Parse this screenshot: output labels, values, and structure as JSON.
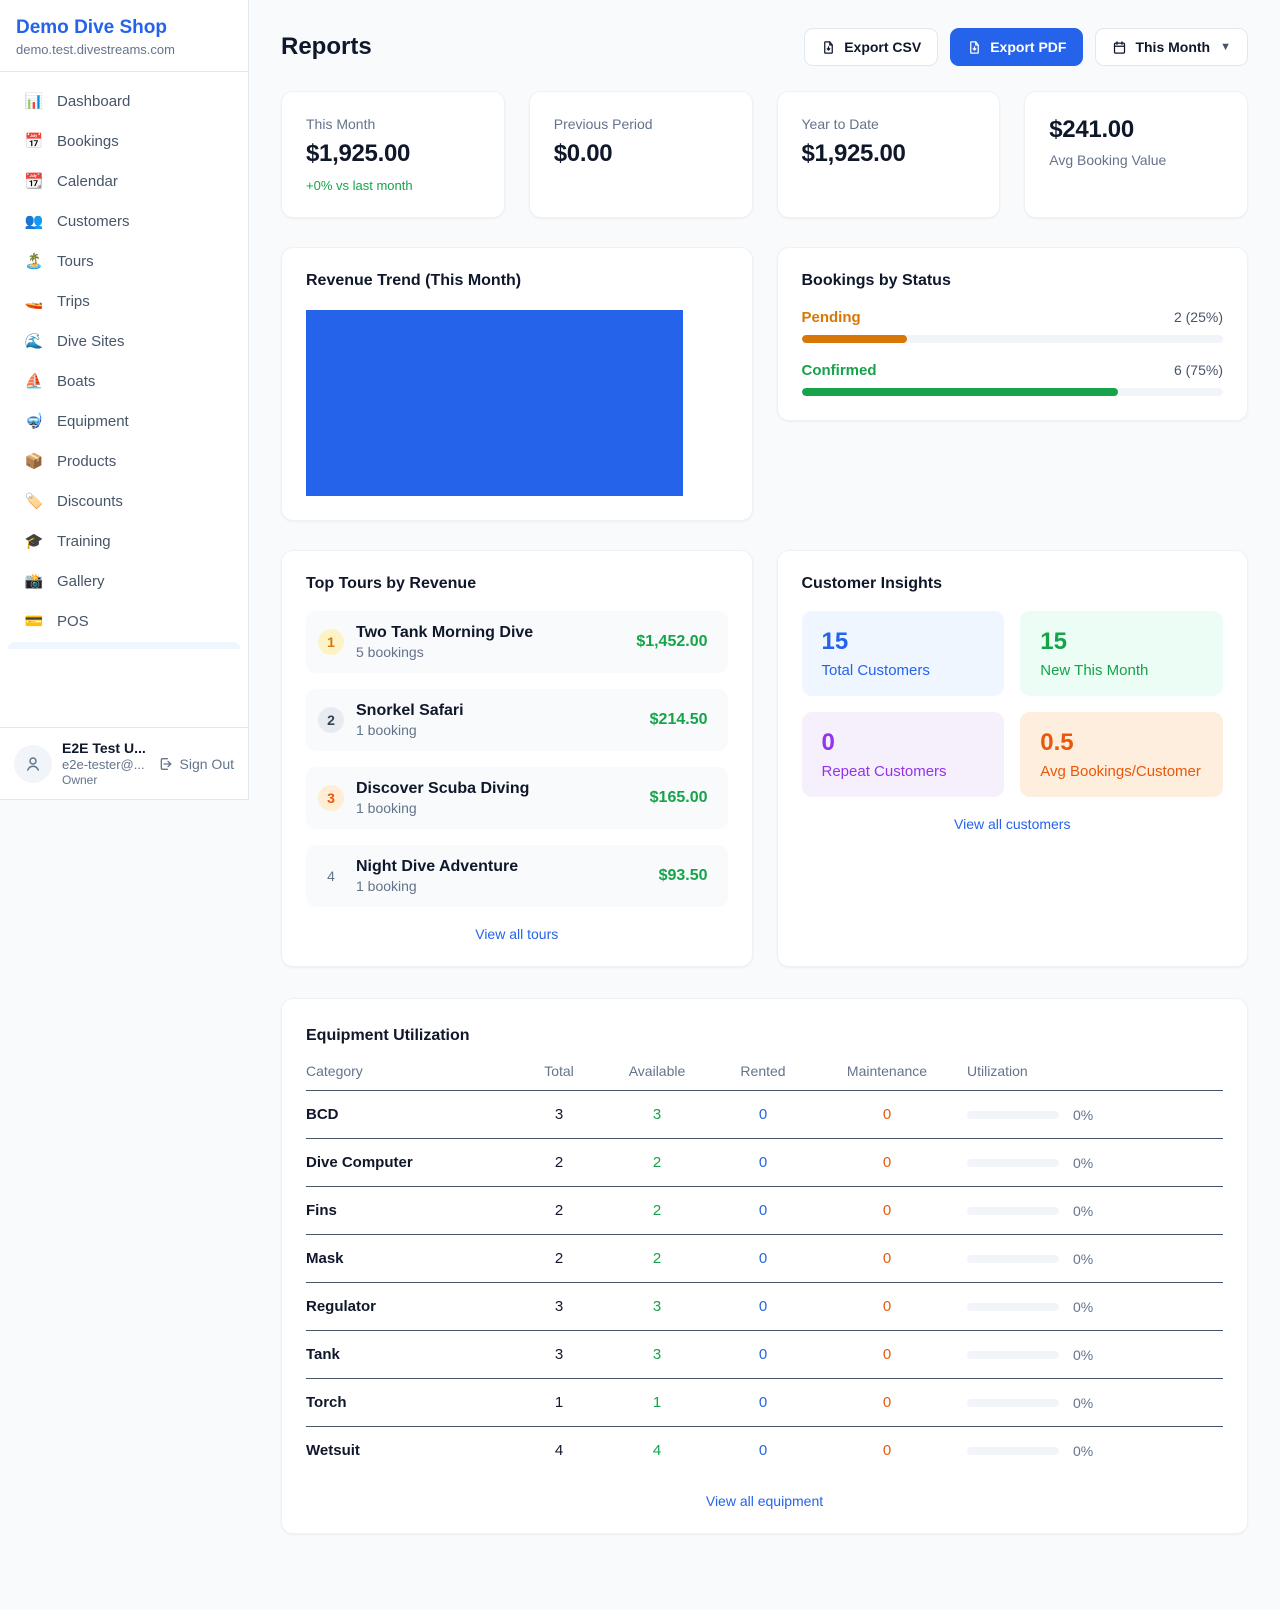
{
  "colors": {
    "accent_blue": "#2563eb",
    "green": "#16a34a",
    "amber": "#d97706",
    "orange": "#ea580c",
    "purple": "#9333ea"
  },
  "sidebar": {
    "brand_name": "Demo Dive Shop",
    "brand_domain": "demo.test.divestreams.com",
    "nav": [
      {
        "icon": "📊",
        "label": "Dashboard"
      },
      {
        "icon": "📅",
        "label": "Bookings"
      },
      {
        "icon": "📆",
        "label": "Calendar"
      },
      {
        "icon": "👥",
        "label": "Customers"
      },
      {
        "icon": "🏝️",
        "label": "Tours"
      },
      {
        "icon": "🚤",
        "label": "Trips"
      },
      {
        "icon": "🌊",
        "label": "Dive Sites"
      },
      {
        "icon": "⛵",
        "label": "Boats"
      },
      {
        "icon": "🤿",
        "label": "Equipment"
      },
      {
        "icon": "📦",
        "label": "Products"
      },
      {
        "icon": "🏷️",
        "label": "Discounts"
      },
      {
        "icon": "🎓",
        "label": "Training"
      },
      {
        "icon": "📸",
        "label": "Gallery"
      },
      {
        "icon": "💳",
        "label": "POS"
      }
    ],
    "user": {
      "name": "E2E Test U...",
      "email": "e2e-tester@...",
      "role": "Owner",
      "sign_out_label": "Sign Out"
    }
  },
  "header": {
    "title": "Reports",
    "export_csv_label": "Export CSV",
    "export_pdf_label": "Export PDF",
    "period_label": "This Month"
  },
  "stats": [
    {
      "label": "This Month",
      "value": "$1,925.00",
      "delta": "+0% vs last month"
    },
    {
      "label": "Previous Period",
      "value": "$0.00"
    },
    {
      "label": "Year to Date",
      "value": "$1,925.00"
    },
    {
      "label": "Avg Booking Value",
      "value": "$241.00"
    }
  ],
  "revenue_trend": {
    "title": "Revenue Trend (This Month)",
    "bar_color": "#2563eb",
    "bar_height_pct": 100,
    "note": "single full-height blue bar filling the plot area"
  },
  "bookings_by_status": {
    "title": "Bookings by Status",
    "rows": [
      {
        "label": "Pending",
        "count_text": "2 (25%)",
        "pct": 25
      },
      {
        "label": "Confirmed",
        "count_text": "6 (75%)",
        "pct": 75
      }
    ]
  },
  "top_tours": {
    "title": "Top Tours by Revenue",
    "items": [
      {
        "rank": "1",
        "name": "Two Tank Morning Dive",
        "bookings": "5 bookings",
        "amount": "$1,452.00"
      },
      {
        "rank": "2",
        "name": "Snorkel Safari",
        "bookings": "1 booking",
        "amount": "$214.50"
      },
      {
        "rank": "3",
        "name": "Discover Scuba Diving",
        "bookings": "1 booking",
        "amount": "$165.00"
      },
      {
        "rank": "4",
        "name": "Night Dive Adventure",
        "bookings": "1 booking",
        "amount": "$93.50"
      }
    ],
    "view_all_label": "View all tours"
  },
  "customer_insights": {
    "title": "Customer Insights",
    "tiles": [
      {
        "value": "15",
        "label": "Total Customers"
      },
      {
        "value": "15",
        "label": "New This Month"
      },
      {
        "value": "0",
        "label": "Repeat Customers"
      },
      {
        "value": "0.5",
        "label": "Avg Bookings/Customer"
      }
    ],
    "view_all_label": "View all customers"
  },
  "equipment": {
    "title": "Equipment Utilization",
    "columns": [
      "Category",
      "Total",
      "Available",
      "Rented",
      "Maintenance",
      "Utilization"
    ],
    "rows": [
      {
        "category": "BCD",
        "total": "3",
        "available": "3",
        "rented": "0",
        "maintenance": "0",
        "utilization_text": "0%",
        "utilization_pct": 0
      },
      {
        "category": "Dive Computer",
        "total": "2",
        "available": "2",
        "rented": "0",
        "maintenance": "0",
        "utilization_text": "0%",
        "utilization_pct": 0
      },
      {
        "category": "Fins",
        "total": "2",
        "available": "2",
        "rented": "0",
        "maintenance": "0",
        "utilization_text": "0%",
        "utilization_pct": 0
      },
      {
        "category": "Mask",
        "total": "2",
        "available": "2",
        "rented": "0",
        "maintenance": "0",
        "utilization_text": "0%",
        "utilization_pct": 0
      },
      {
        "category": "Regulator",
        "total": "3",
        "available": "3",
        "rented": "0",
        "maintenance": "0",
        "utilization_text": "0%",
        "utilization_pct": 0
      },
      {
        "category": "Tank",
        "total": "3",
        "available": "3",
        "rented": "0",
        "maintenance": "0",
        "utilization_text": "0%",
        "utilization_pct": 0
      },
      {
        "category": "Torch",
        "total": "1",
        "available": "1",
        "rented": "0",
        "maintenance": "0",
        "utilization_text": "0%",
        "utilization_pct": 0
      },
      {
        "category": "Wetsuit",
        "total": "4",
        "available": "4",
        "rented": "0",
        "maintenance": "0",
        "utilization_text": "0%",
        "utilization_pct": 0
      }
    ],
    "view_all_label": "View all equipment"
  }
}
